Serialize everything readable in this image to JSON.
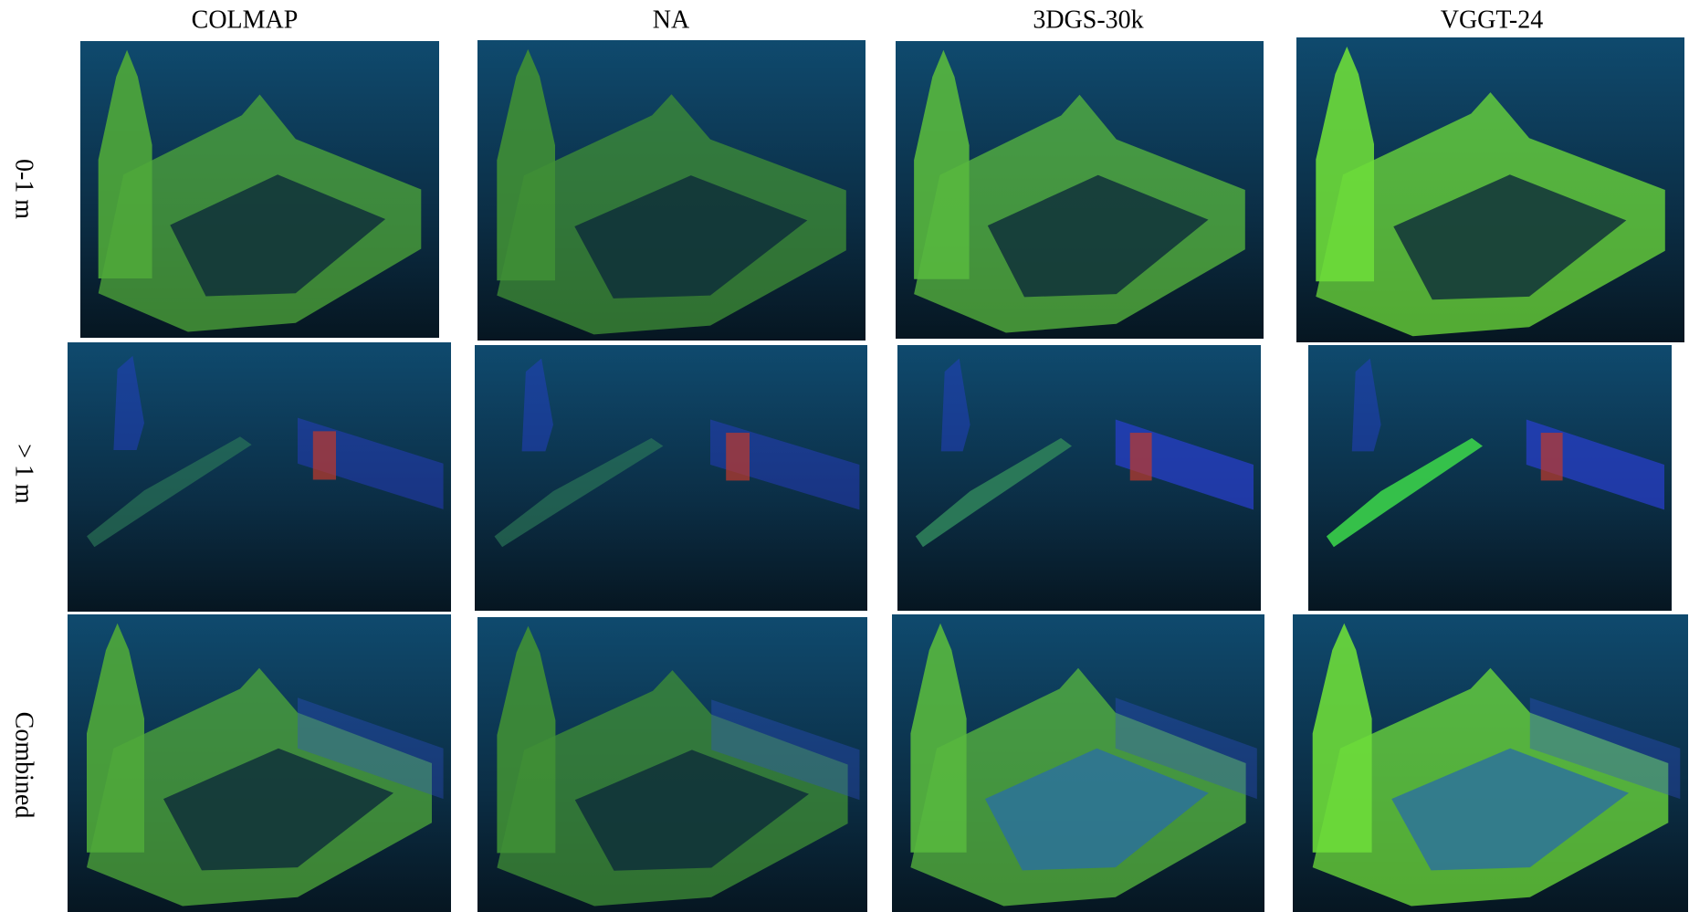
{
  "columns": [
    "COLMAP",
    "NA",
    "3DGS-30k",
    "VGGT-24"
  ],
  "rows": [
    "0-1 m",
    "> 1 m",
    "Combined"
  ]
}
